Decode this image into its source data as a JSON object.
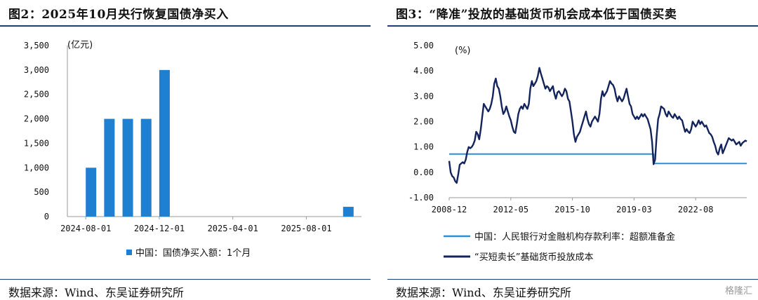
{
  "left_panel": {
    "title": "图2：2025年10月央行恢复国债净买入",
    "source": "数据来源：Wind、东吴证券研究所"
  },
  "right_panel": {
    "title": "图3：“降准”投放的基础货币机会成本低于国债买卖",
    "source": "数据来源：Wind、东吴证券研究所"
  },
  "watermark": "格隆汇",
  "chart_data": [
    {
      "type": "bar",
      "unit_label": "(亿元)",
      "ylim": [
        0,
        3500
      ],
      "yticks": [
        0,
        500,
        1000,
        1500,
        2000,
        2500,
        3000,
        3500
      ],
      "ytick_labels": [
        "0",
        "500",
        "1,000",
        "1,500",
        "2,000",
        "2,500",
        "3,000",
        "3,500"
      ],
      "xlim": [
        "2024-07-01",
        "2025-11-01"
      ],
      "xticks": [
        "2024-08-01",
        "2024-12-01",
        "2025-04-01",
        "2025-08-01"
      ],
      "color": "#1f7fd0",
      "series": [
        {
          "name": "中国：国债净买入额：1个月",
          "points": [
            {
              "x": "2024-08-01",
              "y": 1000
            },
            {
              "x": "2024-09-01",
              "y": 2000
            },
            {
              "x": "2024-10-01",
              "y": 2000
            },
            {
              "x": "2024-11-01",
              "y": 2000
            },
            {
              "x": "2024-12-01",
              "y": 3000
            },
            {
              "x": "2025-10-01",
              "y": 200
            }
          ]
        }
      ],
      "legend_position": "bottom"
    },
    {
      "type": "line",
      "unit_label": "(%)",
      "ylim": [
        -1.0,
        5.0
      ],
      "yticks": [
        -1.0,
        0.0,
        1.0,
        2.0,
        3.0,
        4.0,
        5.0
      ],
      "ytick_labels": [
        "-1.00",
        "0.00",
        "1.00",
        "2.00",
        "3.00",
        "4.00",
        "5.00"
      ],
      "xlim": [
        "2008-12",
        "2025-06"
      ],
      "xticks": [
        "2008-12",
        "2012-05",
        "2015-10",
        "2019-03",
        "2022-08"
      ],
      "legend_position": "bottom",
      "series": [
        {
          "name": "中国：人民银行对金融机构存款利率：超额准备金",
          "color": "#2b8fd6",
          "points": [
            [
              "2008-12",
              0.72
            ],
            [
              "2020-04",
              0.72
            ],
            [
              "2020-04",
              0.35
            ],
            [
              "2025-06",
              0.35
            ]
          ]
        },
        {
          "name": "“买短卖长”基础货币投放成本",
          "color": "#13245c",
          "points": [
            [
              "2008-12",
              0.45
            ],
            [
              "2009-01",
              0.0
            ],
            [
              "2009-02",
              -0.15
            ],
            [
              "2009-03",
              -0.2
            ],
            [
              "2009-04",
              -0.35
            ],
            [
              "2009-05",
              -0.42
            ],
            [
              "2009-06",
              -0.1
            ],
            [
              "2009-07",
              0.3
            ],
            [
              "2009-08",
              0.35
            ],
            [
              "2009-09",
              0.4
            ],
            [
              "2009-10",
              0.35
            ],
            [
              "2009-11",
              0.5
            ],
            [
              "2009-12",
              0.8
            ],
            [
              "2010-01",
              1.0
            ],
            [
              "2010-02",
              0.95
            ],
            [
              "2010-03",
              1.0
            ],
            [
              "2010-04",
              1.1
            ],
            [
              "2010-05",
              1.25
            ],
            [
              "2010-06",
              1.6
            ],
            [
              "2010-07",
              1.5
            ],
            [
              "2010-08",
              1.3
            ],
            [
              "2010-09",
              1.7
            ],
            [
              "2010-10",
              2.2
            ],
            [
              "2010-11",
              2.7
            ],
            [
              "2010-12",
              2.6
            ],
            [
              "2011-01",
              2.5
            ],
            [
              "2011-02",
              2.4
            ],
            [
              "2011-03",
              2.5
            ],
            [
              "2011-04",
              2.7
            ],
            [
              "2011-05",
              3.0
            ],
            [
              "2011-06",
              3.5
            ],
            [
              "2011-07",
              3.7
            ],
            [
              "2011-08",
              3.4
            ],
            [
              "2011-09",
              3.3
            ],
            [
              "2011-10",
              3.0
            ],
            [
              "2011-11",
              2.6
            ],
            [
              "2011-12",
              2.3
            ],
            [
              "2012-01",
              2.4
            ],
            [
              "2012-02",
              2.6
            ],
            [
              "2012-03",
              2.4
            ],
            [
              "2012-04",
              2.2
            ],
            [
              "2012-05",
              2.05
            ],
            [
              "2012-06",
              1.8
            ],
            [
              "2012-07",
              1.6
            ],
            [
              "2012-08",
              1.55
            ],
            [
              "2012-09",
              1.9
            ],
            [
              "2012-10",
              2.3
            ],
            [
              "2012-11",
              2.5
            ],
            [
              "2012-12",
              2.6
            ],
            [
              "2013-01",
              2.5
            ],
            [
              "2013-02",
              2.7
            ],
            [
              "2013-03",
              2.6
            ],
            [
              "2013-04",
              2.5
            ],
            [
              "2013-05",
              2.7
            ],
            [
              "2013-06",
              3.3
            ],
            [
              "2013-07",
              3.6
            ],
            [
              "2013-08",
              3.4
            ],
            [
              "2013-09",
              3.5
            ],
            [
              "2013-10",
              3.6
            ],
            [
              "2013-11",
              3.8
            ],
            [
              "2013-12",
              4.12
            ],
            [
              "2014-01",
              3.9
            ],
            [
              "2014-02",
              3.7
            ],
            [
              "2014-03",
              3.5
            ],
            [
              "2014-04",
              3.3
            ],
            [
              "2014-05",
              3.4
            ],
            [
              "2014-06",
              3.35
            ],
            [
              "2014-07",
              3.2
            ],
            [
              "2014-08",
              3.3
            ],
            [
              "2014-09",
              3.4
            ],
            [
              "2014-10",
              3.1
            ],
            [
              "2014-11",
              2.9
            ],
            [
              "2014-12",
              3.15
            ],
            [
              "2015-01",
              3.2
            ],
            [
              "2015-02",
              3.1
            ],
            [
              "2015-03",
              3.0
            ],
            [
              "2015-04",
              3.1
            ],
            [
              "2015-05",
              3.3
            ],
            [
              "2015-06",
              3.2
            ],
            [
              "2015-07",
              2.9
            ],
            [
              "2015-08",
              2.8
            ],
            [
              "2015-09",
              2.4
            ],
            [
              "2015-10",
              2.0
            ],
            [
              "2015-11",
              1.5
            ],
            [
              "2015-12",
              1.2
            ],
            [
              "2016-01",
              1.4
            ],
            [
              "2016-02",
              1.5
            ],
            [
              "2016-03",
              1.6
            ],
            [
              "2016-04",
              1.8
            ],
            [
              "2016-05",
              2.0
            ],
            [
              "2016-06",
              2.2
            ],
            [
              "2016-07",
              2.4
            ],
            [
              "2016-08",
              2.1
            ],
            [
              "2016-09",
              1.9
            ],
            [
              "2016-10",
              1.8
            ],
            [
              "2016-11",
              2.0
            ],
            [
              "2016-12",
              2.1
            ],
            [
              "2017-01",
              2.2
            ],
            [
              "2017-02",
              2.1
            ],
            [
              "2017-03",
              2.0
            ],
            [
              "2017-04",
              2.3
            ],
            [
              "2017-05",
              2.9
            ],
            [
              "2017-06",
              3.2
            ],
            [
              "2017-07",
              3.0
            ],
            [
              "2017-08",
              3.1
            ],
            [
              "2017-09",
              3.2
            ],
            [
              "2017-10",
              3.4
            ],
            [
              "2017-11",
              3.6
            ],
            [
              "2017-12",
              3.5
            ],
            [
              "2018-01",
              3.45
            ],
            [
              "2018-02",
              3.3
            ],
            [
              "2018-03",
              3.0
            ],
            [
              "2018-04",
              2.8
            ],
            [
              "2018-05",
              3.0
            ],
            [
              "2018-06",
              2.9
            ],
            [
              "2018-07",
              2.8
            ],
            [
              "2018-08",
              2.9
            ],
            [
              "2018-09",
              3.1
            ],
            [
              "2018-10",
              3.3
            ],
            [
              "2018-11",
              3.0
            ],
            [
              "2018-12",
              2.7
            ],
            [
              "2019-01",
              2.6
            ],
            [
              "2019-02",
              2.3
            ],
            [
              "2019-03",
              2.2
            ],
            [
              "2019-04",
              2.1
            ],
            [
              "2019-05",
              2.2
            ],
            [
              "2019-06",
              2.1
            ],
            [
              "2019-07",
              2.2
            ],
            [
              "2019-08",
              2.3
            ],
            [
              "2019-09",
              2.2
            ],
            [
              "2019-10",
              2.3
            ],
            [
              "2019-11",
              2.2
            ],
            [
              "2019-12",
              2.1
            ],
            [
              "2020-01",
              1.9
            ],
            [
              "2020-02",
              1.7
            ],
            [
              "2020-03",
              1.2
            ],
            [
              "2020-04",
              0.32
            ],
            [
              "2020-05",
              0.5
            ],
            [
              "2020-06",
              1.4
            ],
            [
              "2020-07",
              2.1
            ],
            [
              "2020-08",
              2.3
            ],
            [
              "2020-09",
              2.6
            ],
            [
              "2020-10",
              2.55
            ],
            [
              "2020-11",
              2.5
            ],
            [
              "2020-12",
              2.3
            ],
            [
              "2021-01",
              2.2
            ],
            [
              "2021-02",
              2.4
            ],
            [
              "2021-03",
              2.3
            ],
            [
              "2021-04",
              2.2
            ],
            [
              "2021-05",
              2.15
            ],
            [
              "2021-06",
              2.3
            ],
            [
              "2021-07",
              2.2
            ],
            [
              "2021-08",
              2.1
            ],
            [
              "2021-09",
              2.2
            ],
            [
              "2021-10",
              2.1
            ],
            [
              "2021-11",
              2.05
            ],
            [
              "2021-12",
              1.8
            ],
            [
              "2022-01",
              1.6
            ],
            [
              "2022-02",
              1.7
            ],
            [
              "2022-03",
              1.6
            ],
            [
              "2022-04",
              1.55
            ],
            [
              "2022-05",
              1.7
            ],
            [
              "2022-06",
              2.0
            ],
            [
              "2022-07",
              1.9
            ],
            [
              "2022-08",
              1.8
            ],
            [
              "2022-09",
              1.9
            ],
            [
              "2022-10",
              2.05
            ],
            [
              "2022-11",
              1.9
            ],
            [
              "2022-12",
              2.0
            ],
            [
              "2023-01",
              1.9
            ],
            [
              "2023-02",
              1.8
            ],
            [
              "2023-03",
              1.85
            ],
            [
              "2023-04",
              1.7
            ],
            [
              "2023-05",
              1.55
            ],
            [
              "2023-06",
              1.5
            ],
            [
              "2023-07",
              1.4
            ],
            [
              "2023-08",
              1.2
            ],
            [
              "2023-09",
              1.05
            ],
            [
              "2023-10",
              0.8
            ],
            [
              "2023-11",
              0.7
            ],
            [
              "2023-12",
              0.95
            ],
            [
              "2024-01",
              1.1
            ],
            [
              "2024-02",
              0.75
            ],
            [
              "2024-03",
              0.9
            ],
            [
              "2024-04",
              1.05
            ],
            [
              "2024-05",
              1.2
            ],
            [
              "2024-06",
              1.35
            ],
            [
              "2024-07",
              1.3
            ],
            [
              "2024-08",
              1.25
            ],
            [
              "2024-09",
              1.3
            ],
            [
              "2024-10",
              1.2
            ],
            [
              "2024-11",
              1.1
            ],
            [
              "2024-12",
              1.15
            ],
            [
              "2025-01",
              1.2
            ],
            [
              "2025-02",
              1.05
            ],
            [
              "2025-03",
              1.15
            ],
            [
              "2025-04",
              1.2
            ],
            [
              "2025-05",
              1.25
            ],
            [
              "2025-06",
              1.22
            ]
          ]
        }
      ]
    }
  ]
}
